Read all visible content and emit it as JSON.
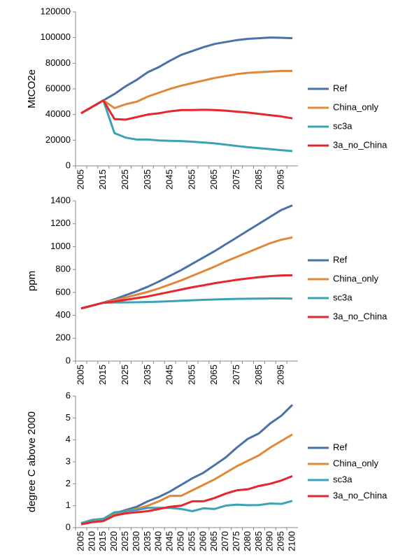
{
  "chart_data": [
    {
      "type": "line",
      "y_label": "MtCO2e",
      "categories": [
        "2005",
        null,
        "2015",
        null,
        "2025",
        null,
        "2035",
        null,
        "2045",
        null,
        "2055",
        null,
        "2065",
        null,
        "2075",
        null,
        "2085",
        null,
        "2095",
        null
      ],
      "ylim": [
        0,
        120000
      ],
      "yticks": [
        0,
        20000,
        40000,
        60000,
        80000,
        100000,
        120000
      ],
      "grid": false,
      "legend": "right",
      "series": [
        {
          "name": "Ref",
          "color": "#4a72a8",
          "values": [
            41000,
            46000,
            51000,
            56000,
            62000,
            67000,
            73000,
            77000,
            82000,
            86500,
            89500,
            92500,
            95000,
            96500,
            98000,
            99000,
            99500,
            100000,
            99800,
            99500
          ]
        },
        {
          "name": "China_only",
          "color": "#e0883a",
          "values": [
            41000,
            46000,
            51000,
            45000,
            48000,
            50000,
            54000,
            57000,
            60000,
            62500,
            64500,
            66500,
            68500,
            70000,
            71500,
            72500,
            73000,
            73500,
            74000,
            74000
          ]
        },
        {
          "name": "sc3a",
          "color": "#3ba3b5",
          "values": [
            41000,
            46000,
            51000,
            25500,
            22000,
            20500,
            20500,
            19800,
            19500,
            19300,
            18800,
            18200,
            17500,
            16500,
            15500,
            14500,
            13800,
            13000,
            12200,
            11500
          ]
        },
        {
          "name": "3a_no_China",
          "color": "#e8252b",
          "values": [
            41000,
            46000,
            51000,
            36500,
            36000,
            38000,
            40000,
            41000,
            42500,
            43500,
            43500,
            43700,
            43500,
            43000,
            42200,
            41500,
            40500,
            39500,
            38500,
            37000
          ]
        }
      ]
    },
    {
      "type": "line",
      "y_label": "ppm",
      "categories": [
        "2005",
        null,
        "2015",
        null,
        "2025",
        null,
        "2035",
        null,
        "2045",
        null,
        "2055",
        null,
        "2065",
        null,
        "2075",
        null,
        "2085",
        null,
        "2095",
        null
      ],
      "ylim": [
        0,
        1400
      ],
      "yticks": [
        0,
        200,
        400,
        600,
        800,
        1000,
        1200,
        1400
      ],
      "grid": false,
      "legend": "right",
      "series": [
        {
          "name": "Ref",
          "color": "#4a72a8",
          "values": [
            460,
            485,
            510,
            540,
            575,
            610,
            650,
            695,
            745,
            795,
            850,
            905,
            960,
            1020,
            1080,
            1140,
            1200,
            1260,
            1320,
            1360
          ]
        },
        {
          "name": "China_only",
          "color": "#e0883a",
          "values": [
            460,
            485,
            510,
            530,
            555,
            580,
            605,
            635,
            670,
            705,
            745,
            785,
            825,
            870,
            910,
            950,
            990,
            1030,
            1060,
            1080
          ]
        },
        {
          "name": "sc3a",
          "color": "#3ba3b5",
          "values": [
            460,
            485,
            510,
            512,
            513,
            514,
            516,
            519,
            523,
            527,
            531,
            535,
            538,
            541,
            543,
            545,
            546,
            547,
            547,
            546
          ]
        },
        {
          "name": "3a_no_China",
          "color": "#e8252b",
          "values": [
            460,
            485,
            510,
            520,
            535,
            550,
            565,
            585,
            605,
            625,
            645,
            662,
            680,
            695,
            710,
            722,
            733,
            742,
            748,
            750
          ]
        }
      ]
    },
    {
      "type": "line",
      "y_label": "degree C above 2000",
      "categories": [
        "2005",
        "2010",
        "2015",
        "2020",
        "2025",
        "2030",
        "2035",
        "2040",
        "2045",
        "2050",
        "2055",
        "2060",
        "2065",
        "2070",
        "2075",
        "2080",
        "2085",
        "2090",
        "2095",
        "2100"
      ],
      "ylim": [
        0,
        6
      ],
      "yticks": [
        0,
        1,
        2,
        3,
        4,
        5,
        6
      ],
      "grid": false,
      "legend": "right",
      "series": [
        {
          "name": "Ref",
          "color": "#4a72a8",
          "values": [
            0.2,
            0.35,
            0.4,
            0.65,
            0.8,
            0.95,
            1.2,
            1.4,
            1.65,
            1.95,
            2.25,
            2.5,
            2.85,
            3.2,
            3.65,
            4.05,
            4.3,
            4.75,
            5.1,
            5.6
          ]
        },
        {
          "name": "China_only",
          "color": "#e0883a",
          "values": [
            0.2,
            0.35,
            0.4,
            0.6,
            0.75,
            0.85,
            1.0,
            1.2,
            1.45,
            1.45,
            1.7,
            1.95,
            2.2,
            2.5,
            2.8,
            3.05,
            3.3,
            3.65,
            3.95,
            4.25
          ]
        },
        {
          "name": "sc3a",
          "color": "#3ba3b5",
          "values": [
            0.2,
            0.35,
            0.4,
            0.7,
            0.75,
            0.8,
            0.9,
            0.9,
            0.9,
            0.85,
            0.75,
            0.88,
            0.85,
            1.0,
            1.05,
            1.02,
            1.03,
            1.1,
            1.08,
            1.22
          ]
        },
        {
          "name": "3a_no_China",
          "color": "#e8252b",
          "values": [
            0.15,
            0.25,
            0.3,
            0.55,
            0.65,
            0.7,
            0.75,
            0.85,
            0.95,
            1.0,
            1.2,
            1.2,
            1.35,
            1.55,
            1.7,
            1.75,
            1.9,
            2.0,
            2.15,
            2.35
          ]
        }
      ]
    }
  ]
}
